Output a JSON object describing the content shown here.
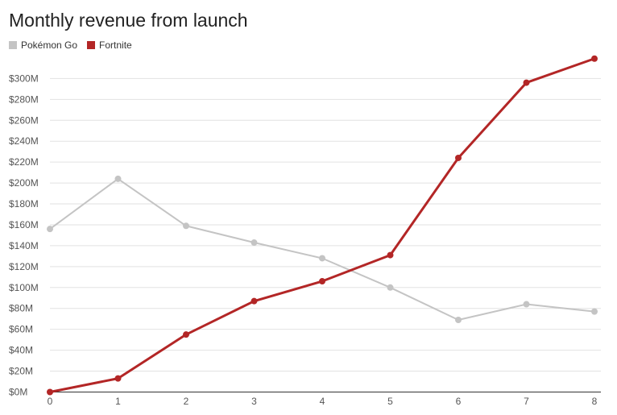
{
  "chart_data": {
    "type": "line",
    "title": "Monthly revenue from launch",
    "xlabel": "",
    "ylabel": "",
    "x": [
      0,
      1,
      2,
      3,
      4,
      5,
      6,
      7,
      8
    ],
    "series": [
      {
        "name": "Pokémon Go",
        "color": "#c4c4c4",
        "values": [
          156,
          204,
          159,
          143,
          128,
          100,
          69,
          84,
          77
        ]
      },
      {
        "name": "Fortnite",
        "color": "#b32626",
        "values": [
          0,
          13,
          55,
          87,
          106,
          131,
          224,
          296,
          319
        ]
      }
    ],
    "ylim": [
      0,
      320
    ],
    "yticks": [
      0,
      20,
      40,
      60,
      80,
      100,
      120,
      140,
      160,
      180,
      200,
      220,
      240,
      260,
      280,
      300
    ],
    "ytick_labels": [
      "$0M",
      "$20M",
      "$40M",
      "$60M",
      "$80M",
      "$100M",
      "$120M",
      "$140M",
      "$160M",
      "$180M",
      "$200M",
      "$220M",
      "$240M",
      "$260M",
      "$280M",
      "$300M"
    ],
    "xtick_labels": [
      "0",
      "1",
      "2",
      "3",
      "4",
      "5",
      "6",
      "7",
      "8"
    ],
    "grid": true,
    "legend_position": "top-left"
  }
}
